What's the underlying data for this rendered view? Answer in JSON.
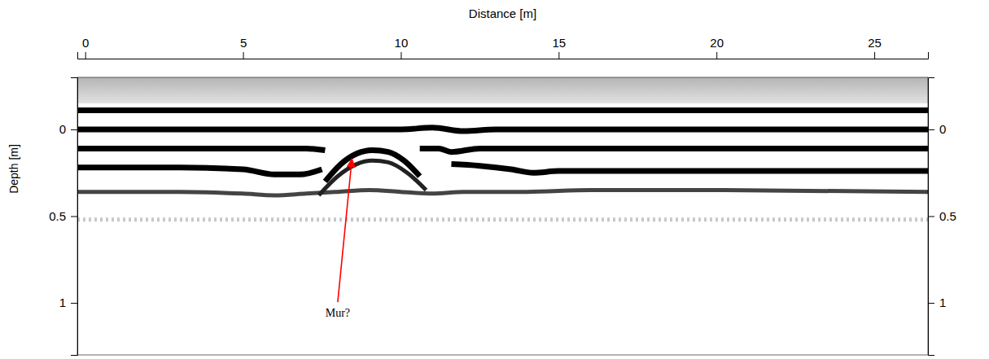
{
  "chart_data": {
    "type": "line",
    "x_label": "Distance [m]",
    "y_label": "Depth [m]",
    "xlim": [
      -0.25,
      26.7
    ],
    "xticks": [
      0,
      5,
      10,
      15,
      20,
      25
    ],
    "ylim": [
      -0.3,
      1.3
    ],
    "yticks": [
      0,
      0.5,
      1
    ],
    "series": [
      {
        "color": "#000000",
        "x": [
          -0.25,
          26.7
        ],
        "values": [
          -0.11,
          -0.11
        ]
      },
      {
        "color": "#000000",
        "x": [
          -0.25,
          5,
          10,
          11,
          12,
          13,
          14,
          20,
          26.7
        ],
        "values": [
          0.0,
          0.0,
          0.0,
          -0.01,
          0.01,
          0.0,
          0.0,
          0.0,
          0.0
        ]
      },
      {
        "color": "#000000",
        "x": [
          -0.25,
          2,
          4,
          6,
          7,
          7.6,
          7.9,
          10.6,
          11.2,
          11.6,
          12.5,
          14,
          16,
          20,
          26.7
        ],
        "values": [
          0.11,
          0.11,
          0.11,
          0.11,
          0.11,
          0.12,
          null,
          0.11,
          0.11,
          0.13,
          0.11,
          0.11,
          0.11,
          0.11,
          0.11
        ]
      },
      {
        "color": "#000000",
        "x": [
          -0.25,
          3,
          5,
          6,
          6.8,
          7.5,
          7.9,
          11.6,
          12.5,
          13.5,
          14.2,
          15,
          20,
          26.7
        ],
        "values": [
          0.22,
          0.22,
          0.23,
          0.26,
          0.26,
          0.23,
          null,
          0.2,
          0.21,
          0.23,
          0.25,
          0.24,
          0.24,
          0.24
        ]
      },
      {
        "color": "#444444",
        "x": [
          -0.25,
          3,
          5,
          6,
          7,
          8,
          9,
          10,
          11,
          12,
          14,
          16,
          20,
          26.7
        ],
        "values": [
          0.36,
          0.36,
          0.37,
          0.38,
          0.37,
          0.36,
          0.35,
          0.36,
          0.37,
          0.36,
          0.36,
          0.35,
          0.35,
          0.36
        ]
      },
      {
        "color": "#c8c8c8",
        "line_style": "dotted",
        "x": [
          -0.25,
          26.7
        ],
        "values": [
          0.52,
          0.52
        ]
      },
      {
        "color": "#000000",
        "x": [
          7.6,
          8.1,
          8.6,
          9.1,
          9.6,
          10.1,
          10.6
        ],
        "values": [
          0.3,
          0.2,
          0.14,
          0.12,
          0.13,
          0.18,
          0.27
        ]
      },
      {
        "color": "#222222",
        "x": [
          7.4,
          8,
          8.6,
          9.1,
          9.6,
          10.2,
          10.8
        ],
        "values": [
          0.38,
          0.27,
          0.2,
          0.18,
          0.19,
          0.25,
          0.35
        ]
      }
    ],
    "annotations": [
      {
        "text": "Mur?",
        "x": 8.0,
        "y": 1.08,
        "arrow_x": 8.45,
        "arrow_y": 0.17,
        "color": "#ff0000"
      }
    ]
  }
}
